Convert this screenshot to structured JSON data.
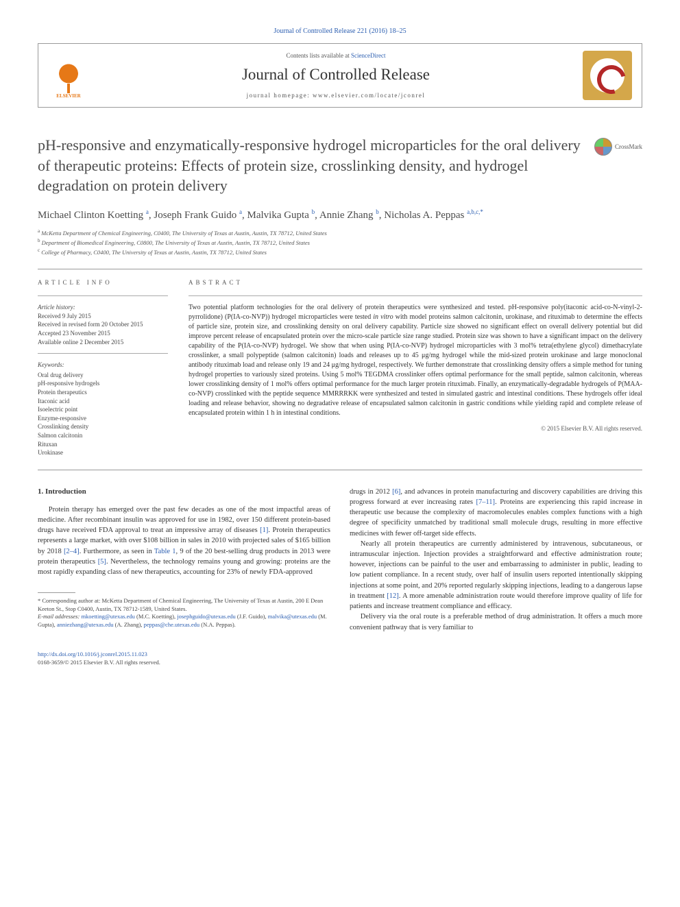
{
  "top_citation": "Journal of Controlled Release 221 (2016) 18–25",
  "header": {
    "contents_prefix": "Contents lists available at ",
    "contents_link": "ScienceDirect",
    "journal_name": "Journal of Controlled Release",
    "homepage_prefix": "journal homepage: ",
    "homepage_url": "www.elsevier.com/locate/jconrel",
    "publisher_label": "ELSEVIER"
  },
  "crossmark_label": "CrossMark",
  "title": "pH-responsive and enzymatically-responsive hydrogel microparticles for the oral delivery of therapeutic proteins: Effects of protein size, crosslinking density, and hydrogel degradation on protein delivery",
  "authors_html": "Michael Clinton Koetting <sup>a</sup>, Joseph Frank Guido <sup>a</sup>, Malvika Gupta <sup>b</sup>, Annie Zhang <sup>b</sup>, Nicholas A. Peppas <sup>a,b,c,*</sup>",
  "affiliations": [
    {
      "sup": "a",
      "text": "McKetta Department of Chemical Engineering, C0400, The University of Texas at Austin, Austin, TX 78712, United States"
    },
    {
      "sup": "b",
      "text": "Department of Biomedical Engineering, C0800, The University of Texas at Austin, Austin, TX 78712, United States"
    },
    {
      "sup": "c",
      "text": "College of Pharmacy, C0400, The University of Texas at Austin, Austin, TX 78712, United States"
    }
  ],
  "article_info": {
    "label": "article info",
    "history_label": "Article history:",
    "history": [
      "Received 9 July 2015",
      "Received in revised form 20 October 2015",
      "Accepted 23 November 2015",
      "Available online 2 December 2015"
    ],
    "keywords_label": "Keywords:",
    "keywords": [
      "Oral drug delivery",
      "pH-responsive hydrogels",
      "Protein therapeutics",
      "Itaconic acid",
      "Isoelectric point",
      "Enzyme-responsive",
      "Crosslinking density",
      "Salmon calcitonin",
      "Rituxan",
      "Urokinase"
    ]
  },
  "abstract": {
    "label": "abstract",
    "text": "Two potential platform technologies for the oral delivery of protein therapeutics were synthesized and tested. pH-responsive poly(itaconic acid-co-N-vinyl-2-pyrrolidone) (P(IA-co-NVP)) hydrogel microparticles were tested in vitro with model proteins salmon calcitonin, urokinase, and rituximab to determine the effects of particle size, protein size, and crosslinking density on oral delivery capability. Particle size showed no significant effect on overall delivery potential but did improve percent release of encapsulated protein over the micro-scale particle size range studied. Protein size was shown to have a significant impact on the delivery capability of the P(IA-co-NVP) hydrogel. We show that when using P(IA-co-NVP) hydrogel microparticles with 3 mol% tetra(ethylene glycol) dimethacrylate crosslinker, a small polypeptide (salmon calcitonin) loads and releases up to 45 μg/mg hydrogel while the mid-sized protein urokinase and large monoclonal antibody rituximab load and release only 19 and 24 μg/mg hydrogel, respectively. We further demonstrate that crosslinking density offers a simple method for tuning hydrogel properties to variously sized proteins. Using 5 mol% TEGDMA crosslinker offers optimal performance for the small peptide, salmon calcitonin, whereas lower crosslinking density of 1 mol% offers optimal performance for the much larger protein rituximab. Finally, an enzymatically-degradable hydrogels of P(MAA-co-NVP) crosslinked with the peptide sequence MMRRRKK were synthesized and tested in simulated gastric and intestinal conditions. These hydrogels offer ideal loading and release behavior, showing no degradative release of encapsulated salmon calcitonin in gastric conditions while yielding rapid and complete release of encapsulated protein within 1 h in intestinal conditions.",
    "copyright": "© 2015 Elsevier B.V. All rights reserved."
  },
  "body": {
    "section_heading": "1. Introduction",
    "col1_p1": "Protein therapy has emerged over the past few decades as one of the most impactful areas of medicine. After recombinant insulin was approved for use in 1982, over 150 different protein-based drugs have received FDA approval to treat an impressive array of diseases [1]. Protein therapeutics represents a large market, with over $108 billion in sales in 2010 with projected sales of $165 billion by 2018 [2–4]. Furthermore, as seen in Table 1, 9 of the 20 best-selling drug products in 2013 were protein therapeutics [5]. Nevertheless, the technology remains young and growing: proteins are the most rapidly expanding class of new therapeutics, accounting for 23% of newly FDA-approved",
    "col2_p1": "drugs in 2012 [6], and advances in protein manufacturing and discovery capabilities are driving this progress forward at ever increasing rates [7–11]. Proteins are experiencing this rapid increase in therapeutic use because the complexity of macromolecules enables complex functions with a high degree of specificity unmatched by traditional small molecule drugs, resulting in more effective medicines with fewer off-target side effects.",
    "col2_p2": "Nearly all protein therapeutics are currently administered by intravenous, subcutaneous, or intramuscular injection. Injection provides a straightforward and effective administration route; however, injections can be painful to the user and embarrassing to administer in public, leading to low patient compliance. In a recent study, over half of insulin users reported intentionally skipping injections at some point, and 20% reported regularly skipping injections, leading to a dangerous lapse in treatment [12]. A more amenable administration route would therefore improve quality of life for patients and increase treatment compliance and efficacy.",
    "col2_p3": "Delivery via the oral route is a preferable method of drug administration. It offers a much more convenient pathway that is very familiar to",
    "refs": {
      "r1": "[1]",
      "r2_4": "[2–4]",
      "t1": "Table 1",
      "r5": "[5]",
      "r6": "[6]",
      "r7_11": "[7–11]",
      "r12": "[12]"
    }
  },
  "footnotes": {
    "corr": "* Corresponding author at: McKetta Department of Chemical Engineering, The University of Texas at Austin, 200 E Dean Keeton St., Stop C0400, Austin, TX 78712-1589, United States.",
    "email_label": "E-mail addresses:",
    "emails": [
      {
        "addr": "mkoetting@utexas.edu",
        "who": "(M.C. Koetting)"
      },
      {
        "addr": "josephguido@utexas.edu",
        "who": "(J.F. Guido)"
      },
      {
        "addr": "malvika@utexas.edu",
        "who": "(M. Gupta)"
      },
      {
        "addr": "anniezhang@utexas.edu",
        "who": "(A. Zhang)"
      },
      {
        "addr": "peppas@che.utexas.edu",
        "who": "(N.A. Peppas)."
      }
    ]
  },
  "doi": {
    "url": "http://dx.doi.org/10.1016/j.jconrel.2015.11.023",
    "issn_line": "0168-3659/© 2015 Elsevier B.V. All rights reserved."
  },
  "colors": {
    "link": "#2a5db0",
    "text": "#333333",
    "rule": "#999999",
    "elsevier": "#e67817"
  }
}
